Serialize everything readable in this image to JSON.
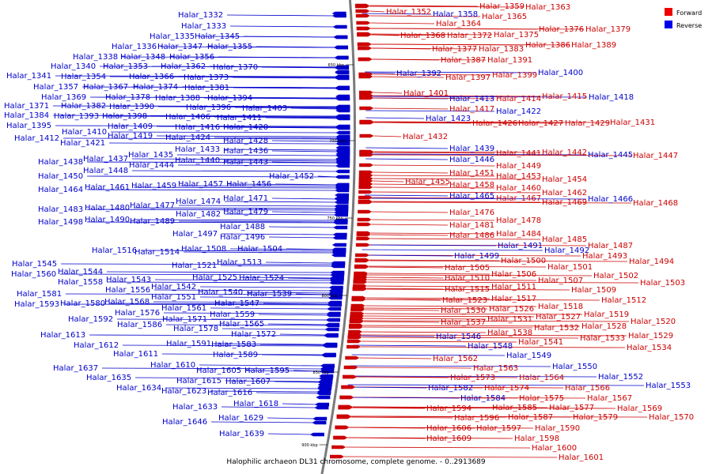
{
  "caption": "Halophilic archaeon DL31 chromosome, complete genome. - 0..2913689",
  "legend": [
    {
      "label": "Forward",
      "color": "#ee0000"
    },
    {
      "label": "Reverse",
      "color": "#0000ee"
    }
  ],
  "colors": {
    "forward": "#cc0000",
    "reverse": "#0000cc",
    "backbone": "#777777"
  },
  "ticks": [
    "650 kbp",
    "700 kbp",
    "750 kbp",
    "800 kbp",
    "850 kbp",
    "900 kbp"
  ],
  "chart_data": {
    "type": "genome-map",
    "forward": [
      "Halar_1352",
      "Halar_1358",
      "Halar_1359",
      "Halar_1363",
      "Halar_1364",
      "Halar_1365",
      "Halar_1368",
      "Halar_1372",
      "Halar_1375",
      "Halar_1376",
      "Halar_1379",
      "Halar_1377",
      "Halar_1383",
      "Halar_1386",
      "Halar_1389",
      "Halar_1387",
      "Halar_1391",
      "Halar_1397",
      "Halar_1399",
      "Halar_1401",
      "Halar_1414",
      "Halar_1415",
      "Halar_1417",
      "Halar_1426",
      "Halar_1427",
      "Halar_1429",
      "Halar_1431",
      "Halar_1432",
      "Halar_1441",
      "Halar_1442",
      "Halar_1447",
      "Halar_1449",
      "Halar_1451",
      "Halar_1453",
      "Halar_1454",
      "Halar_1455",
      "Halar_1458",
      "Halar_1460",
      "Halar_1462",
      "Halar_1467",
      "Halar_1469",
      "Halar_1468",
      "Halar_1476",
      "Halar_1478",
      "Halar_1481",
      "Halar_1484",
      "Halar_1485",
      "Halar_1486",
      "Halar_1487",
      "Halar_1493",
      "Halar_1494",
      "Halar_1500",
      "Halar_1501",
      "Halar_1502",
      "Halar_1503",
      "Halar_1505",
      "Halar_1506",
      "Halar_1507",
      "Halar_1509",
      "Halar_1510",
      "Halar_1511",
      "Halar_1512",
      "Halar_1515",
      "Halar_1517",
      "Halar_1518",
      "Halar_1519",
      "Halar_1520",
      "Halar_1523",
      "Halar_1526",
      "Halar_1527",
      "Halar_1528",
      "Halar_1529",
      "Halar_1530",
      "Halar_1531",
      "Halar_1532",
      "Halar_1533",
      "Halar_1534",
      "Halar_1537",
      "Halar_1538",
      "Halar_1541",
      "Halar_1562",
      "Halar_1563",
      "Halar_1564",
      "Halar_1566",
      "Halar_1567",
      "Halar_1569",
      "Halar_1570",
      "Halar_1573",
      "Halar_1574",
      "Halar_1575",
      "Halar_1577",
      "Halar_1579",
      "Halar_1585",
      "Halar_1587",
      "Halar_1590",
      "Halar_1594",
      "Halar_1596",
      "Halar_1597",
      "Halar_1598",
      "Halar_1600",
      "Halar_1601",
      "Halar_1606",
      "Halar_1609"
    ],
    "reverse": [
      "Halar_1332",
      "Halar_1333",
      "Halar_1335",
      "Halar_1345",
      "Halar_1336",
      "Halar_1347",
      "Halar_1355",
      "Halar_1338",
      "Halar_1348",
      "Halar_1356",
      "Halar_1340",
      "Halar_1353",
      "Halar_1362",
      "Halar_1370",
      "Halar_1341",
      "Halar_1354",
      "Halar_1366",
      "Halar_1373",
      "Halar_1357",
      "Halar_1367",
      "Halar_1374",
      "Halar_1381",
      "Halar_1369",
      "Halar_1378",
      "Halar_1388",
      "Halar_1394",
      "Halar_1371",
      "Halar_1382",
      "Halar_1390",
      "Halar_1396",
      "Halar_1403",
      "Halar_1384",
      "Halar_1393",
      "Halar_1398",
      "Halar_1406",
      "Halar_1411",
      "Halar_1395",
      "Halar_1409",
      "Halar_1416",
      "Halar_1420",
      "Halar_1410",
      "Halar_1412",
      "Halar_1419",
      "Halar_1424",
      "Halar_1421",
      "Halar_1428",
      "Halar_1433",
      "Halar_1436",
      "Halar_1435",
      "Halar_1437",
      "Halar_1438",
      "Halar_1440",
      "Halar_1443",
      "Halar_1444",
      "Halar_1448",
      "Halar_1450",
      "Halar_1452",
      "Halar_1457",
      "Halar_1456",
      "Halar_1459",
      "Halar_1461",
      "Halar_1464",
      "Halar_1471",
      "Halar_1474",
      "Halar_1477",
      "Halar_1479",
      "Halar_1480",
      "Halar_1482",
      "Halar_1483",
      "Halar_1488",
      "Halar_1489",
      "Halar_1490",
      "Halar_1496",
      "Halar_1497",
      "Halar_1498",
      "Halar_1504",
      "Halar_1508",
      "Halar_1513",
      "Halar_1514",
      "Halar_1516",
      "Halar_1521",
      "Halar_1524",
      "Halar_1525",
      "Halar_1539",
      "Halar_1540",
      "Halar_1542",
      "Halar_1543",
      "Halar_1544",
      "Halar_1545",
      "Halar_1547",
      "Halar_1551",
      "Halar_1556",
      "Halar_1558",
      "Halar_1559",
      "Halar_1560",
      "Halar_1561",
      "Halar_1565",
      "Halar_1568",
      "Halar_1571",
      "Halar_1572",
      "Halar_1576",
      "Halar_1578",
      "Halar_1580",
      "Halar_1581",
      "Halar_1583",
      "Halar_1586",
      "Halar_1589",
      "Halar_1591",
      "Halar_1592",
      "Halar_1593",
      "Halar_1595",
      "Halar_1605",
      "Halar_1607",
      "Halar_1610",
      "Halar_1611",
      "Halar_1612",
      "Halar_1613",
      "Halar_1615",
      "Halar_1616",
      "Halar_1618",
      "Halar_1623",
      "Halar_1629",
      "Halar_1633",
      "Halar_1634",
      "Halar_1635",
      "Halar_1637",
      "Halar_1639",
      "Halar_1646",
      "Halar_1392",
      "Halar_1400",
      "Halar_1413",
      "Halar_1418",
      "Halar_1422",
      "Halar_1423",
      "Halar_1439",
      "Halar_1445",
      "Halar_1446",
      "Halar_1465",
      "Halar_1466",
      "Halar_1491",
      "Halar_1492",
      "Halar_1499",
      "Halar_1546",
      "Halar_1548",
      "Halar_1549",
      "Halar_1550",
      "Halar_1552",
      "Halar_1553",
      "Halar_1582",
      "Halar_1584"
    ]
  }
}
